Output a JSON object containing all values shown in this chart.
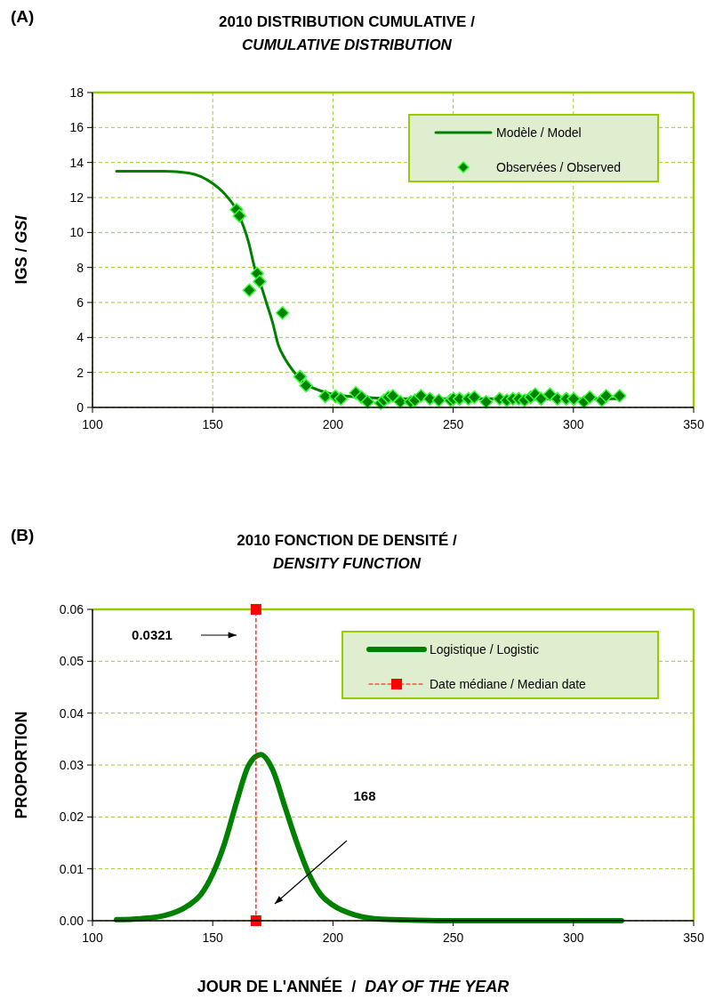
{
  "chart_data": [
    {
      "type": "scatter",
      "title": "2010 DISTRIBUTION CUMULATIVE / CUMULATIVE DISTRIBUTION",
      "ylabel": "IGS / GSI",
      "annotations": [
        "(A)"
      ],
      "xlim": [
        100,
        350
      ],
      "xticks": [
        100,
        150,
        200,
        250,
        300,
        350
      ],
      "ylim": [
        0,
        18
      ],
      "yticks": [
        0,
        2,
        4,
        6,
        8,
        10,
        12,
        14,
        16,
        18
      ],
      "grid": true,
      "legend": "top right",
      "series": [
        {
          "type": "line",
          "name": "Modèle / Model",
          "color": "#008000",
          "marker": "none",
          "line_style": "solid",
          "x": [
            110,
            130,
            140,
            150,
            155,
            160,
            165,
            167.4,
            170,
            172.3,
            175,
            177.2,
            180,
            184.6,
            188,
            192,
            196,
            200,
            210,
            230,
            260,
            320
          ],
          "values": [
            13.5,
            13.5,
            13.4,
            12.8,
            12.2,
            11.25,
            9.4,
            8.0,
            7.0,
            6.0,
            4.8,
            3.6,
            2.8,
            1.9,
            1.4,
            1.1,
            0.9,
            0.75,
            0.6,
            0.5,
            0.5,
            0.5
          ]
        },
        {
          "name": "Observées / Observed",
          "color": "#008000",
          "marker": "diamond",
          "x": [
            159.9,
            161.1,
            168.5,
            169.5,
            165.2,
            179,
            186.3,
            188.8,
            196.8,
            201,
            203.3,
            209.5,
            211.9,
            214.4,
            219.9,
            221.2,
            223,
            224.9,
            228,
            232.3,
            234.1,
            236.6,
            240.3,
            244,
            248.9,
            250.1,
            252.6,
            256.3,
            258.8,
            263.7,
            269.3,
            272.3,
            274.8,
            277.3,
            279.7,
            282.2,
            284.1,
            286.5,
            290.2,
            293.3,
            297,
            300.1,
            304.4,
            306.8,
            311.8,
            313.6,
            319.2
          ],
          "values": [
            11.3,
            10.95,
            7.65,
            7.2,
            6.7,
            5.4,
            1.76,
            1.25,
            0.63,
            0.63,
            0.49,
            0.83,
            0.58,
            0.32,
            0.24,
            0.41,
            0.58,
            0.66,
            0.32,
            0.32,
            0.41,
            0.66,
            0.49,
            0.41,
            0.41,
            0.49,
            0.49,
            0.49,
            0.58,
            0.32,
            0.49,
            0.41,
            0.49,
            0.49,
            0.41,
            0.58,
            0.75,
            0.49,
            0.75,
            0.49,
            0.49,
            0.49,
            0.32,
            0.58,
            0.41,
            0.66,
            0.66
          ]
        }
      ]
    },
    {
      "type": "line",
      "title": "2010 FONCTION DE DENSITÉ / DENSITY FUNCTION",
      "xlabel": "JOUR DE L'ANNÉE  /  DAY OF THE YEAR",
      "ylabel": "PROPORTION",
      "annotations": [
        "(B)",
        "0.0321",
        "168"
      ],
      "xlim": [
        100,
        350
      ],
      "xticks": [
        100,
        150,
        200,
        250,
        300,
        350
      ],
      "ylim": [
        0,
        0.06
      ],
      "yticks": [
        {
          "value": 0,
          "label": "0.00"
        },
        {
          "value": 0.01,
          "label": "0.01"
        },
        {
          "value": 0.02,
          "label": "0.02"
        },
        {
          "value": 0.03,
          "label": "0.03"
        },
        {
          "value": 0.04,
          "label": "0.04"
        },
        {
          "value": 0.05,
          "label": "0.05"
        },
        {
          "value": 0.06,
          "label": "0.06"
        }
      ],
      "grid": "y",
      "legend": "top right",
      "series": [
        {
          "name": "Logistique / Logistic",
          "color": "#008000",
          "marker": "none",
          "line_style": "solid",
          "x": [
            110,
            120,
            130,
            140,
            145,
            150,
            155,
            160,
            165,
            170,
            175,
            180,
            185,
            190,
            195,
            200,
            210,
            220,
            235,
            250,
            280,
            320
          ],
          "values": [
            0.0002,
            0.0004,
            0.001,
            0.003,
            0.005,
            0.009,
            0.015,
            0.023,
            0.03,
            0.032,
            0.029,
            0.022,
            0.015,
            0.009,
            0.005,
            0.003,
            0.001,
            0.0003,
            0.0001,
            0,
            0,
            0
          ]
        },
        {
          "name": "Date médiane / Median date",
          "color": "#ff0000",
          "marker": "square",
          "line_style": "dashed",
          "x": [
            168,
            168
          ],
          "values": [
            0,
            0.06
          ]
        }
      ]
    }
  ]
}
